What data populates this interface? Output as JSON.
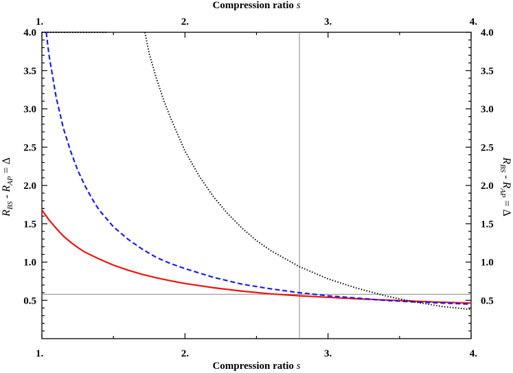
{
  "chart_data": {
    "type": "line",
    "xlabel": "Compression ratio",
    "xlabel_var": "s",
    "ylabel": {
      "R1": "R",
      "sub1": "BS",
      "minus": " - ",
      "R2": "R",
      "sub2": "AP",
      "eq": " = Δ"
    },
    "xlim": [
      1.0,
      4.0
    ],
    "ylim": [
      0.0,
      4.0
    ],
    "x_ticks": [
      1,
      2,
      3,
      4
    ],
    "x_tick_labels": [
      "1.",
      "2.",
      "3.",
      "4."
    ],
    "y_ticks": [
      0.5,
      1.0,
      1.5,
      2.0,
      2.5,
      3.0,
      3.5,
      4.0
    ],
    "y_tick_labels": [
      "0.5",
      "1.0",
      "1.5",
      "2.0",
      "2.5",
      "3.0",
      "3.5",
      "4.0"
    ],
    "x_minor_step": 0.5,
    "y_minor_step": 0.1,
    "reference_lines": {
      "vertical_x": 2.8,
      "horizontal_y": 0.58,
      "color": "#888888"
    },
    "series": [
      {
        "style": "solid",
        "color": "#ee1111",
        "x": [
          1.0,
          1.05,
          1.1,
          1.15,
          1.2,
          1.25,
          1.3,
          1.4,
          1.5,
          1.6,
          1.7,
          1.8,
          1.9,
          2.0,
          2.2,
          2.4,
          2.6,
          2.8,
          3.0,
          3.2,
          3.4,
          3.6,
          3.8,
          4.0
        ],
        "y": [
          1.68,
          1.55,
          1.44,
          1.34,
          1.26,
          1.19,
          1.13,
          1.04,
          0.96,
          0.895,
          0.84,
          0.795,
          0.755,
          0.72,
          0.665,
          0.62,
          0.585,
          0.56,
          0.54,
          0.52,
          0.505,
          0.49,
          0.475,
          0.465
        ]
      },
      {
        "style": "dashed",
        "color": "#1a1aee",
        "x": [
          1.03,
          1.05,
          1.1,
          1.15,
          1.2,
          1.25,
          1.3,
          1.35,
          1.4,
          1.5,
          1.6,
          1.7,
          1.8,
          1.9,
          2.0,
          2.2,
          2.4,
          2.6,
          2.8,
          3.0,
          3.2,
          3.4,
          3.6,
          3.8,
          4.0
        ],
        "y": [
          4.0,
          3.7,
          3.15,
          2.75,
          2.45,
          2.2,
          2.0,
          1.83,
          1.68,
          1.46,
          1.3,
          1.17,
          1.06,
          0.98,
          0.915,
          0.8,
          0.71,
          0.65,
          0.6,
          0.56,
          0.53,
          0.5,
          0.48,
          0.465,
          0.45
        ]
      },
      {
        "style": "dotted",
        "color": "#000000",
        "x": [
          1.0,
          1.1,
          1.2,
          1.3,
          1.4,
          1.45,
          1.5,
          1.6,
          1.7,
          1.72,
          1.75,
          1.8,
          1.85,
          1.9,
          2.0,
          2.1,
          2.2,
          2.3,
          2.4,
          2.5,
          2.6,
          2.8,
          3.0,
          3.2,
          3.4,
          3.6,
          3.8,
          4.0
        ],
        "y": [
          4.0,
          4.0,
          4.0,
          4.0,
          4.0,
          4.0,
          null,
          null,
          null,
          4.0,
          3.72,
          3.4,
          3.12,
          2.88,
          2.45,
          2.12,
          1.85,
          1.63,
          1.44,
          1.28,
          1.15,
          0.94,
          0.78,
          0.66,
          0.56,
          0.48,
          0.42,
          0.38
        ]
      }
    ]
  }
}
